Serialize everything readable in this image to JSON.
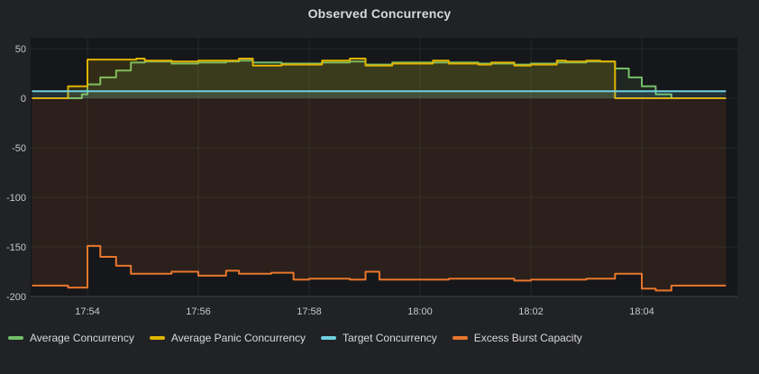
{
  "panel": {
    "title": "Observed Concurrency"
  },
  "colors": {
    "background": "#212226",
    "plot_background": "#16171a",
    "grid": "rgba(255,255,255,0.07)",
    "axis_baseline": "rgba(255,255,255,0.16)",
    "axis_text": "#c7c8ca",
    "title_text": "#d8d9da",
    "green": "#73BF69",
    "yellow": "#E0B400",
    "cyan": "#6ED0E0",
    "orange": "#E8762C"
  },
  "legend": {
    "items": [
      {
        "label": "Average Concurrency",
        "color": "#73BF69"
      },
      {
        "label": "Average Panic Concurrency",
        "color": "#E0B400"
      },
      {
        "label": "Target Concurrency",
        "color": "#6ED0E0"
      },
      {
        "label": "Excess Burst Capacity",
        "color": "#E8762C"
      }
    ]
  },
  "chart_data": {
    "type": "line",
    "title": "Observed Concurrency",
    "xlabel": "",
    "ylabel": "",
    "grid": true,
    "legend_position": "bottom",
    "line_style": "stepped",
    "x_unit": "seconds since 17:53:00",
    "x_range_seconds": [
      0,
      751
    ],
    "x_ticks": [
      {
        "t": 60,
        "label": "17:54"
      },
      {
        "t": 180,
        "label": "17:56"
      },
      {
        "t": 300,
        "label": "17:58"
      },
      {
        "t": 420,
        "label": "18:00"
      },
      {
        "t": 540,
        "label": "18:02"
      },
      {
        "t": 660,
        "label": "18:04"
      }
    ],
    "y_ticks": [
      50,
      0,
      -50,
      -100,
      -150,
      -200
    ],
    "ylim": [
      -210,
      61
    ],
    "series": [
      {
        "name": "Average Concurrency",
        "color": "#73BF69",
        "fill_opacity": 0.1,
        "points": [
          [
            0,
            0
          ],
          [
            54,
            4
          ],
          [
            60,
            14
          ],
          [
            74,
            21
          ],
          [
            91,
            28
          ],
          [
            107,
            36
          ],
          [
            122,
            37
          ],
          [
            151,
            35
          ],
          [
            180,
            36
          ],
          [
            210,
            37
          ],
          [
            224,
            38
          ],
          [
            239,
            36
          ],
          [
            270,
            35
          ],
          [
            300,
            35
          ],
          [
            314,
            36
          ],
          [
            344,
            37
          ],
          [
            361,
            34
          ],
          [
            390,
            36
          ],
          [
            420,
            36
          ],
          [
            451,
            36
          ],
          [
            483,
            35
          ],
          [
            522,
            34
          ],
          [
            540,
            35
          ],
          [
            568,
            36
          ],
          [
            600,
            37
          ],
          [
            631,
            30
          ],
          [
            646,
            21
          ],
          [
            660,
            12
          ],
          [
            675,
            4
          ],
          [
            692,
            0
          ],
          [
            751,
            0
          ]
        ]
      },
      {
        "name": "Average Panic Concurrency",
        "color": "#E0B400",
        "fill_opacity": 0.14,
        "points": [
          [
            0,
            0
          ],
          [
            39,
            12
          ],
          [
            60,
            39
          ],
          [
            113,
            40
          ],
          [
            122,
            38
          ],
          [
            151,
            37
          ],
          [
            180,
            38
          ],
          [
            224,
            40
          ],
          [
            239,
            33
          ],
          [
            270,
            34
          ],
          [
            300,
            34
          ],
          [
            314,
            38
          ],
          [
            344,
            40
          ],
          [
            361,
            33
          ],
          [
            390,
            35
          ],
          [
            420,
            35
          ],
          [
            434,
            38
          ],
          [
            451,
            35
          ],
          [
            483,
            34
          ],
          [
            497,
            36
          ],
          [
            522,
            33
          ],
          [
            540,
            34
          ],
          [
            568,
            38
          ],
          [
            578,
            37
          ],
          [
            600,
            38
          ],
          [
            615,
            37
          ],
          [
            631,
            0
          ],
          [
            751,
            0
          ]
        ]
      },
      {
        "name": "Target Concurrency",
        "color": "#6ED0E0",
        "fill_opacity": 0.14,
        "points": [
          [
            0,
            7
          ],
          [
            751,
            7
          ]
        ]
      },
      {
        "name": "Excess Burst Capacity",
        "color": "#E8762C",
        "fill_opacity": 0.1,
        "points": [
          [
            0,
            -189
          ],
          [
            39,
            -191
          ],
          [
            60,
            -149
          ],
          [
            74,
            -160
          ],
          [
            91,
            -169
          ],
          [
            107,
            -177
          ],
          [
            151,
            -175
          ],
          [
            180,
            -179
          ],
          [
            210,
            -174
          ],
          [
            224,
            -177
          ],
          [
            259,
            -176
          ],
          [
            283,
            -183
          ],
          [
            300,
            -182
          ],
          [
            344,
            -183
          ],
          [
            361,
            -175
          ],
          [
            376,
            -183
          ],
          [
            420,
            -183
          ],
          [
            451,
            -182
          ],
          [
            522,
            -184
          ],
          [
            540,
            -183
          ],
          [
            600,
            -182
          ],
          [
            631,
            -177
          ],
          [
            660,
            -192
          ],
          [
            675,
            -194
          ],
          [
            692,
            -189
          ],
          [
            751,
            -189
          ]
        ]
      }
    ]
  }
}
